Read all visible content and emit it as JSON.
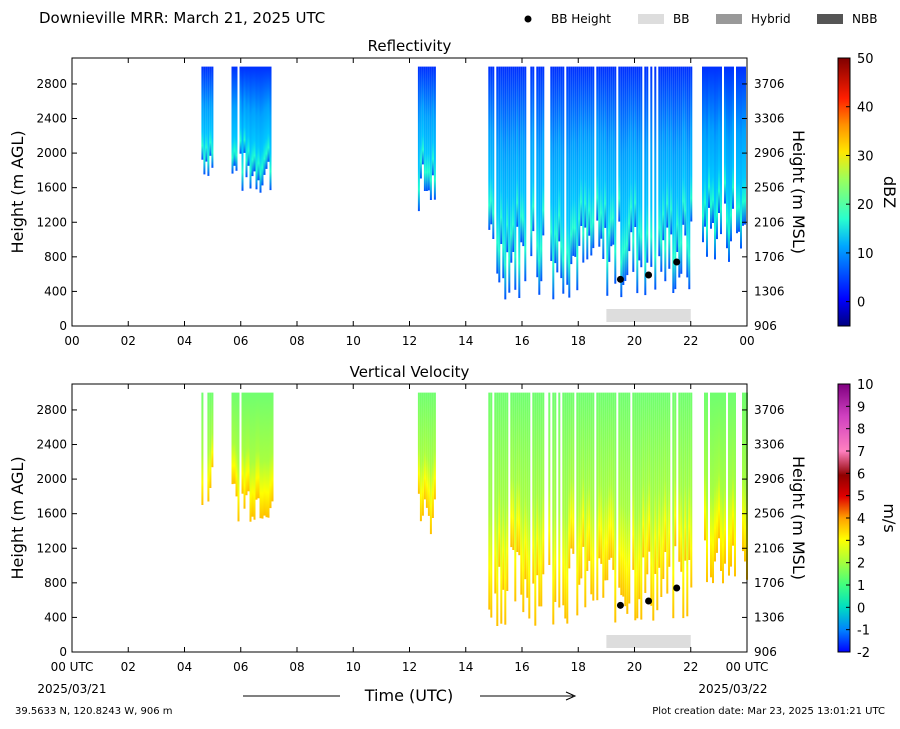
{
  "title": "Downieville MRR:  March 21, 2025 UTC",
  "legend": [
    {
      "label": "BB Height",
      "kind": "dot",
      "color": "#000000"
    },
    {
      "label": "BB",
      "kind": "rect",
      "color": "#dddddd"
    },
    {
      "label": "Hybrid",
      "kind": "rect",
      "color": "#999999"
    },
    {
      "label": "NBB",
      "kind": "rect",
      "color": "#555555"
    }
  ],
  "xlabel": "Time (UTC)",
  "x_ticks": [
    "00",
    "02",
    "04",
    "06",
    "08",
    "10",
    "12",
    "14",
    "16",
    "18",
    "20",
    "22",
    "00"
  ],
  "x_ticks_bottom": [
    "00 UTC",
    "02",
    "04",
    "06",
    "08",
    "10",
    "12",
    "14",
    "16",
    "18",
    "20",
    "22",
    "00 UTC"
  ],
  "x_date_left": "2025/03/21",
  "x_date_right": "2025/03/22",
  "y_ticks_left": [
    "0",
    "400",
    "800",
    "1200",
    "1600",
    "2000",
    "2400",
    "2800"
  ],
  "y_ticks_right": [
    "906",
    "1306",
    "1706",
    "2106",
    "2506",
    "2906",
    "3306",
    "3706"
  ],
  "ylabel_left": "Height (m AGL)",
  "ylabel_right": "Height (m MSL)",
  "footer_left": "39.5633 N, 120.8243 W, 906 m",
  "footer_right": "Plot creation date: Mar 23, 2025 13:01:21 UTC",
  "colors": {
    "bb_bar": "#dddddd",
    "bb_dot": "#000000"
  },
  "chart_data": [
    {
      "type": "heatmap",
      "title": "Reflectivity",
      "xlabel": "",
      "ylabel": "Height (m AGL)",
      "ylabel_right": "Height (m MSL)",
      "xlim_hours": [
        0,
        24
      ],
      "ylim": [
        0,
        3100
      ],
      "colorbar": {
        "label": "dBZ",
        "min": -5,
        "max": 50,
        "ticks": [
          "0",
          "10",
          "20",
          "30",
          "40",
          "50"
        ],
        "tick_values": [
          0,
          10,
          20,
          30,
          40,
          50
        ]
      },
      "echo_segments": [
        {
          "start_h": 4.6,
          "end_h": 5.0,
          "min_height": 1700,
          "max_height": 3000
        },
        {
          "start_h": 5.6,
          "end_h": 7.1,
          "min_height": 1500,
          "max_height": 3000
        },
        {
          "start_h": 12.3,
          "end_h": 12.9,
          "min_height": 1300,
          "max_height": 3000
        },
        {
          "start_h": 14.8,
          "end_h": 22.0,
          "min_height": 300,
          "max_height": 3000
        },
        {
          "start_h": 22.4,
          "end_h": 24.0,
          "min_height": 700,
          "max_height": 3000
        }
      ],
      "bb_height_points": [
        {
          "hour": 19.5,
          "height": 540
        },
        {
          "hour": 20.5,
          "height": 590
        },
        {
          "hour": 21.5,
          "height": 740
        }
      ],
      "bb_bars": [
        {
          "start_h": 19.0,
          "end_h": 22.0,
          "type": "BB"
        }
      ]
    },
    {
      "type": "heatmap",
      "title": "Vertical Velocity",
      "xlabel": "Time (UTC)",
      "ylabel": "Height (m AGL)",
      "ylabel_right": "Height (m MSL)",
      "xlim_hours": [
        0,
        24
      ],
      "ylim": [
        0,
        3100
      ],
      "colorbar": {
        "label": "m/s",
        "min": -2,
        "max": 10,
        "ticks": [
          "-2",
          "-1",
          "0",
          "1",
          "2",
          "3",
          "4",
          "5",
          "6",
          "7",
          "8",
          "9",
          "10"
        ],
        "tick_values": [
          -2,
          -1,
          0,
          1,
          2,
          3,
          4,
          5,
          6,
          7,
          8,
          9,
          10
        ]
      },
      "echo_segments": [
        {
          "start_h": 4.6,
          "end_h": 5.0,
          "min_height": 1700,
          "max_height": 3000
        },
        {
          "start_h": 5.6,
          "end_h": 7.1,
          "min_height": 1500,
          "max_height": 3000
        },
        {
          "start_h": 12.3,
          "end_h": 12.9,
          "min_height": 1300,
          "max_height": 3000
        },
        {
          "start_h": 14.8,
          "end_h": 22.0,
          "min_height": 300,
          "max_height": 3000
        },
        {
          "start_h": 22.4,
          "end_h": 24.0,
          "min_height": 700,
          "max_height": 3000
        }
      ],
      "bb_height_points": [
        {
          "hour": 19.5,
          "height": 540
        },
        {
          "hour": 20.5,
          "height": 590
        },
        {
          "hour": 21.5,
          "height": 740
        }
      ],
      "bb_bars": [
        {
          "start_h": 19.0,
          "end_h": 22.0,
          "type": "BB"
        }
      ]
    }
  ]
}
